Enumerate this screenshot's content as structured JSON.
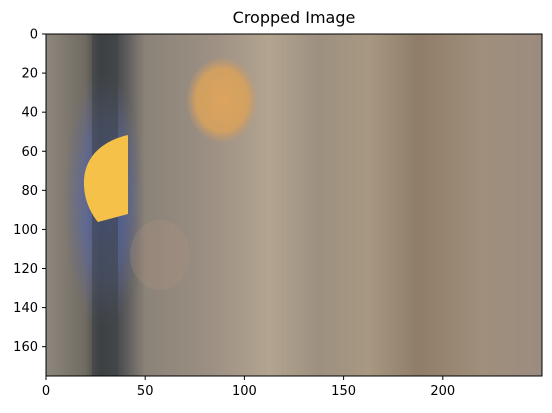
{
  "chart_data": {
    "type": "image",
    "title": "Cropped Image",
    "xlabel": "",
    "ylabel": "",
    "xlim": [
      0,
      250
    ],
    "ylim": [
      175,
      0
    ],
    "x_ticks": [
      0,
      50,
      100,
      150,
      200
    ],
    "y_ticks": [
      0,
      20,
      40,
      60,
      80,
      100,
      120,
      140,
      160
    ],
    "grid": false,
    "image_description_colors": {
      "background": "#9a8c7e",
      "dark_band": "#3f4345",
      "blue_glow": "#5a6aa8",
      "yellow_light": "#f6c14a",
      "orange_light": "#d9a45a",
      "light_band": "#b8a890"
    }
  }
}
